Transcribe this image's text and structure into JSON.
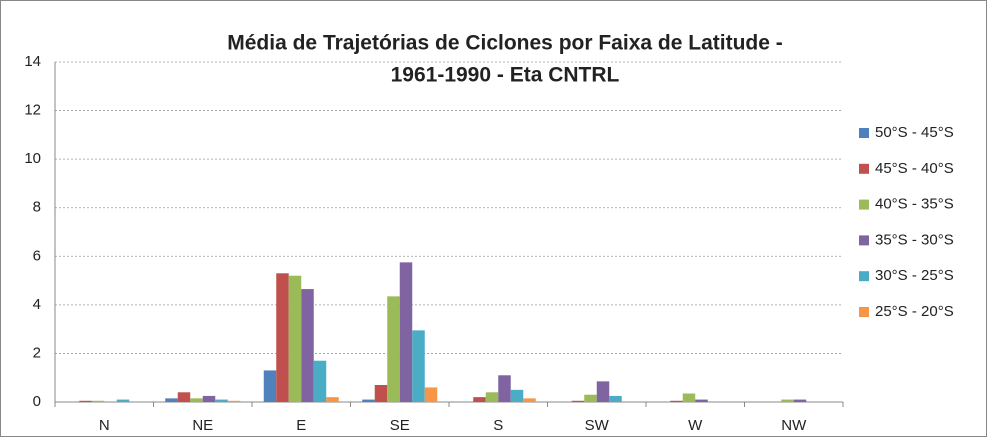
{
  "chart_data": {
    "type": "bar",
    "title": [
      "Média de Trajetórias de Ciclones por Faixa de Latitude -",
      "1961-1990 - Eta CNTRL"
    ],
    "categories": [
      "N",
      "NE",
      "E",
      "SE",
      "S",
      "SW",
      "W",
      "NW"
    ],
    "series": [
      {
        "name": "50°S - 45°S",
        "color": "#4f81bd",
        "values": [
          0,
          0.15,
          1.3,
          0.1,
          0,
          0,
          0,
          0
        ]
      },
      {
        "name": "45°S - 40°S",
        "color": "#c0504d",
        "values": [
          0.05,
          0.4,
          5.3,
          0.7,
          0.2,
          0.05,
          0.05,
          0
        ]
      },
      {
        "name": "40°S - 35°S",
        "color": "#9bbb59",
        "values": [
          0.05,
          0.15,
          5.2,
          4.35,
          0.4,
          0.3,
          0.35,
          0.1
        ]
      },
      {
        "name": "35°S - 30°S",
        "color": "#8064a2",
        "values": [
          0,
          0.25,
          4.65,
          5.75,
          1.1,
          0.85,
          0.1,
          0.1
        ]
      },
      {
        "name": "30°S - 25°S",
        "color": "#4bacc6",
        "values": [
          0.1,
          0.1,
          1.7,
          2.95,
          0.5,
          0.25,
          0,
          0
        ]
      },
      {
        "name": "25°S - 20°S",
        "color": "#f79646",
        "values": [
          0,
          0.05,
          0.2,
          0.6,
          0.15,
          0,
          0,
          0
        ]
      }
    ],
    "ylim": [
      0,
      14
    ],
    "yticks": [
      0,
      2,
      4,
      6,
      8,
      10,
      12,
      14
    ],
    "grid": true,
    "legend": "right"
  }
}
